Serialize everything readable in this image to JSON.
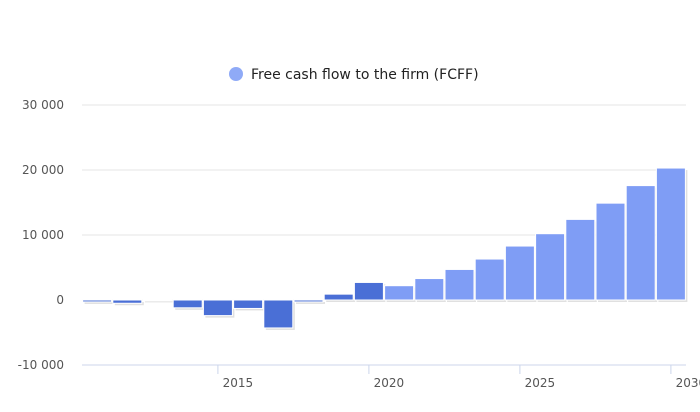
{
  "chart_data": {
    "type": "bar",
    "legend": {
      "position": "top-center",
      "entries": [
        {
          "label": "Free cash flow to the firm (FCFF)",
          "color": "#8faaf7"
        }
      ]
    },
    "xlim": [
      2010.5,
      2030.5
    ],
    "xticks": [
      2015,
      2020,
      2025,
      2030
    ],
    "xtick_labels": [
      "2015",
      "2020",
      "2025",
      "2030"
    ],
    "ylim": [
      -10000,
      30000
    ],
    "yticks": [
      -10000,
      0,
      10000,
      20000,
      30000
    ],
    "ytick_labels": [
      "-10 000",
      "0",
      "10 000",
      "20 000",
      "30 000"
    ],
    "grid": true,
    "series": [
      {
        "name": "Free cash flow to the firm (FCFF)",
        "x": [
          2011,
          2012,
          2013,
          2014,
          2015,
          2016,
          2017,
          2018,
          2019,
          2020,
          2021,
          2022,
          2023,
          2024,
          2025,
          2026,
          2027,
          2028,
          2029,
          2030
        ],
        "values": [
          -300,
          -500,
          100,
          -1200,
          -2400,
          -1300,
          -4300,
          -300,
          900,
          2700,
          2200,
          3300,
          4700,
          6300,
          8300,
          10200,
          12400,
          14900,
          17600,
          20300
        ],
        "colors": [
          "#4a6fd6",
          "#4a6fd6",
          "#4a6fd6",
          "#4a6fd6",
          "#4a6fd6",
          "#4a6fd6",
          "#4a6fd6",
          "#4a6fd6",
          "#4a6fd6",
          "#4a6fd6",
          "#7f9df5",
          "#7f9df5",
          "#7f9df5",
          "#7f9df5",
          "#7f9df5",
          "#7f9df5",
          "#7f9df5",
          "#7f9df5",
          "#7f9df5",
          "#7f9df5"
        ]
      }
    ]
  }
}
